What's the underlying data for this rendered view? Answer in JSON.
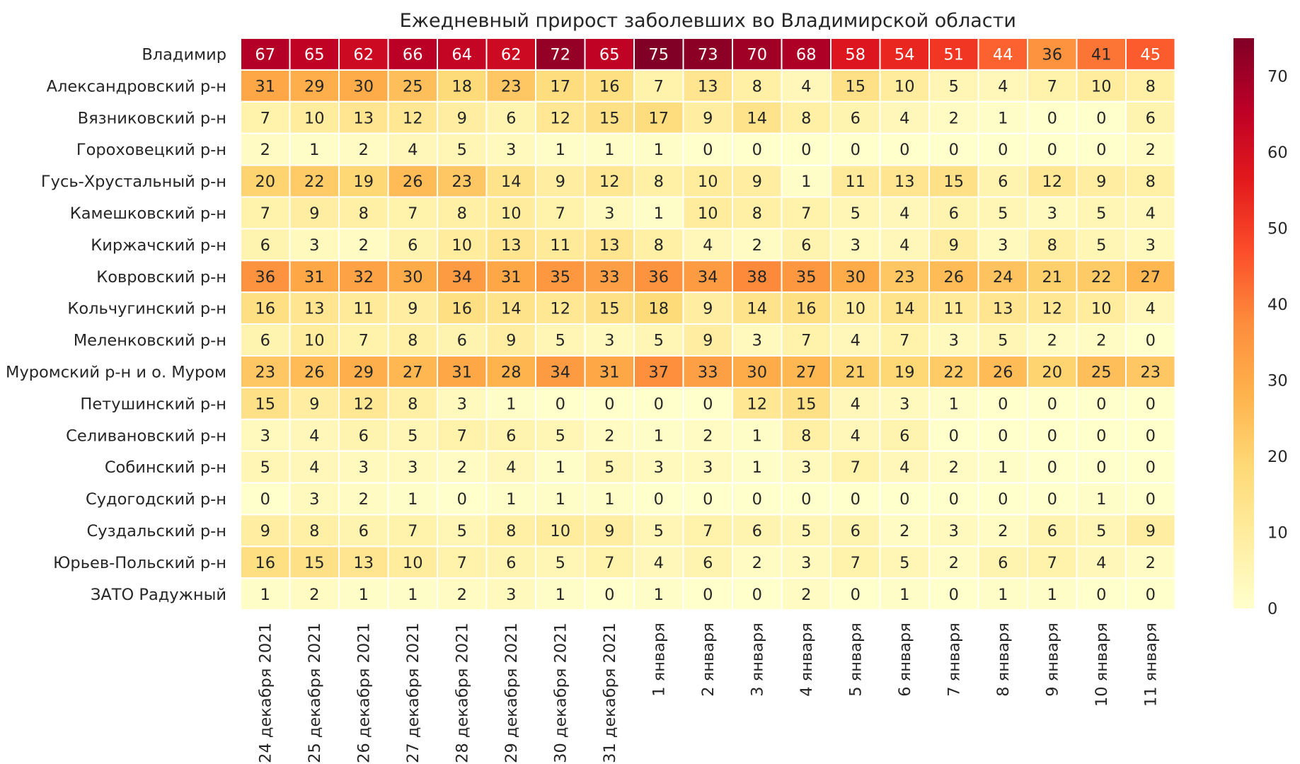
{
  "chart_data": {
    "type": "heatmap",
    "title": "Ежедневный прирост заболевших во Владимирской области",
    "rows": [
      "Владимир",
      "Александровский р-н",
      "Вязниковский р-н",
      "Гороховецкий р-н",
      "Гусь-Хрустальный р-н",
      "Камешковский р-н",
      "Киржачский р-н",
      "Ковровский р-н",
      "Кольчугинский р-н",
      "Меленковский р-н",
      "Муромский р-н и о. Муром",
      "Петушинский р-н",
      "Селивановский р-н",
      "Собинский р-н",
      "Судогодский р-н",
      "Суздальский р-н",
      "Юрьев-Польский р-н",
      "ЗАТО Радужный"
    ],
    "columns": [
      "24 декабря 2021",
      "25 декабря 2021",
      "26 декабря 2021",
      "27 декабря 2021",
      "28 декабря 2021",
      "29 декабря 2021",
      "30 декабря 2021",
      "31 декабря 2021",
      "1 января",
      "2 января",
      "3 января",
      "4 января",
      "5 января",
      "6 января",
      "7 января",
      "8 января",
      "9 января",
      "10 января",
      "11 января"
    ],
    "values": [
      [
        67,
        65,
        62,
        66,
        64,
        62,
        72,
        65,
        75,
        73,
        70,
        68,
        58,
        54,
        51,
        44,
        36,
        41,
        45
      ],
      [
        31,
        29,
        30,
        25,
        18,
        23,
        17,
        16,
        7,
        13,
        8,
        4,
        15,
        10,
        5,
        4,
        7,
        10,
        8
      ],
      [
        7,
        10,
        13,
        12,
        9,
        6,
        12,
        15,
        17,
        9,
        14,
        8,
        6,
        4,
        2,
        1,
        0,
        0,
        6
      ],
      [
        2,
        1,
        2,
        4,
        5,
        3,
        1,
        1,
        1,
        0,
        0,
        0,
        0,
        0,
        0,
        0,
        0,
        0,
        2
      ],
      [
        20,
        22,
        19,
        26,
        23,
        14,
        9,
        12,
        8,
        10,
        9,
        1,
        11,
        13,
        15,
        6,
        12,
        9,
        8
      ],
      [
        7,
        9,
        8,
        7,
        8,
        10,
        7,
        3,
        1,
        10,
        8,
        7,
        5,
        4,
        6,
        5,
        3,
        5,
        4
      ],
      [
        6,
        3,
        2,
        6,
        10,
        13,
        11,
        13,
        8,
        4,
        2,
        6,
        3,
        4,
        9,
        3,
        8,
        5,
        3
      ],
      [
        36,
        31,
        32,
        30,
        34,
        31,
        35,
        33,
        36,
        34,
        38,
        35,
        30,
        23,
        26,
        24,
        21,
        22,
        27
      ],
      [
        16,
        13,
        11,
        9,
        16,
        14,
        12,
        15,
        18,
        9,
        14,
        16,
        10,
        14,
        11,
        13,
        12,
        10,
        4
      ],
      [
        6,
        10,
        7,
        8,
        6,
        9,
        5,
        3,
        5,
        9,
        3,
        7,
        4,
        7,
        3,
        5,
        2,
        2,
        0
      ],
      [
        23,
        26,
        29,
        27,
        31,
        28,
        34,
        31,
        37,
        33,
        30,
        27,
        21,
        19,
        22,
        26,
        20,
        25,
        23
      ],
      [
        15,
        9,
        12,
        8,
        3,
        1,
        0,
        0,
        0,
        0,
        12,
        15,
        4,
        3,
        1,
        0,
        0,
        0,
        0
      ],
      [
        3,
        4,
        6,
        5,
        7,
        6,
        5,
        2,
        1,
        2,
        1,
        8,
        4,
        6,
        0,
        0,
        0,
        0,
        0
      ],
      [
        5,
        4,
        3,
        3,
        2,
        4,
        1,
        5,
        3,
        3,
        1,
        3,
        7,
        4,
        2,
        1,
        0,
        0,
        0
      ],
      [
        0,
        3,
        2,
        1,
        0,
        1,
        1,
        1,
        0,
        0,
        0,
        0,
        0,
        0,
        0,
        0,
        0,
        1,
        0
      ],
      [
        9,
        8,
        6,
        7,
        5,
        8,
        10,
        9,
        5,
        7,
        6,
        5,
        6,
        2,
        3,
        2,
        6,
        5,
        9
      ],
      [
        16,
        15,
        13,
        10,
        7,
        6,
        5,
        7,
        4,
        6,
        2,
        3,
        7,
        5,
        2,
        6,
        7,
        4,
        2
      ],
      [
        1,
        2,
        1,
        1,
        2,
        3,
        1,
        0,
        1,
        0,
        0,
        2,
        0,
        1,
        0,
        1,
        1,
        0,
        0
      ]
    ],
    "colorbar": {
      "range": [
        0,
        75
      ],
      "ticks": [
        0,
        10,
        20,
        30,
        40,
        50,
        60,
        70
      ],
      "colormap": "YlOrRd",
      "colors": [
        "#ffffcc",
        "#ffeda0",
        "#fed976",
        "#feb24c",
        "#fd8d3c",
        "#fc4e2a",
        "#e31a1c",
        "#bd0026",
        "#800026"
      ]
    }
  }
}
